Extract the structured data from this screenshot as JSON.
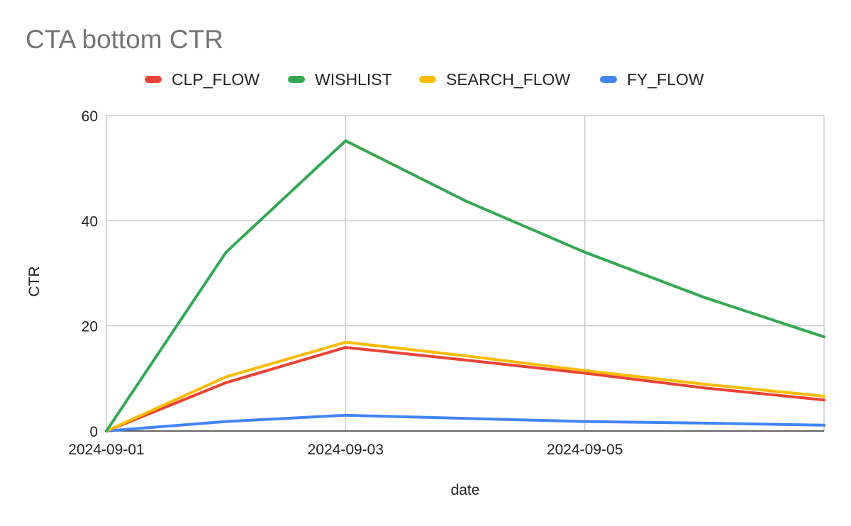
{
  "chart_data": {
    "type": "line",
    "title": "CTA bottom CTR",
    "xlabel": "date",
    "ylabel": "CTR",
    "x": [
      "2024-09-01",
      "2024-09-02",
      "2024-09-03",
      "2024-09-04",
      "2024-09-05",
      "2024-09-06",
      "2024-09-07"
    ],
    "x_tick_labels": [
      "2024-09-01",
      "2024-09-03",
      "2024-09-05"
    ],
    "ylim": [
      0,
      60
    ],
    "y_ticks": [
      0,
      20,
      40,
      60
    ],
    "grid": true,
    "legend_position": "top",
    "series": [
      {
        "name": "CLP_FLOW",
        "color": "#ea4335",
        "values": [
          0,
          9.2,
          15.9,
          13.5,
          11.0,
          8.2,
          5.9
        ]
      },
      {
        "name": "WISHLIST",
        "color": "#34a853",
        "values": [
          0,
          34.0,
          55.2,
          43.8,
          34.0,
          25.4,
          17.9
        ]
      },
      {
        "name": "SEARCH_FLOW",
        "color": "#fbbc04",
        "values": [
          0,
          10.3,
          16.9,
          14.3,
          11.5,
          8.9,
          6.6
        ]
      },
      {
        "name": "FY_FLOW",
        "color": "#4285f4",
        "values": [
          0,
          1.8,
          3.0,
          2.4,
          1.8,
          1.5,
          1.1
        ]
      }
    ]
  }
}
